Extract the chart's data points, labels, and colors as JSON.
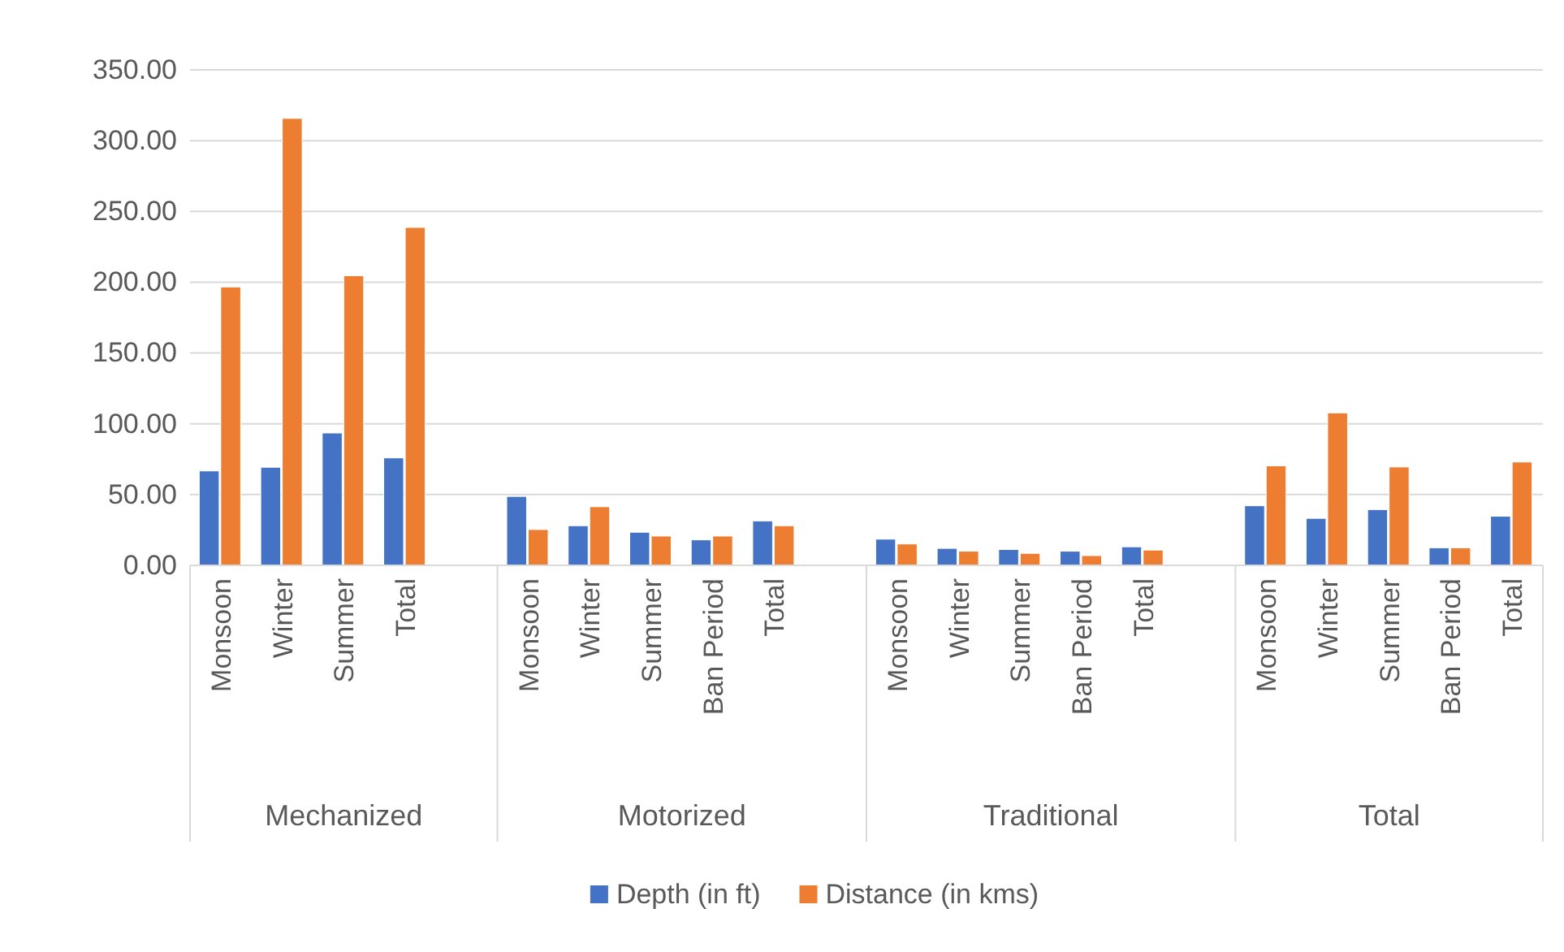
{
  "chart_data": {
    "type": "bar",
    "categories": [
      "Monsoon",
      "Winter",
      "Summer",
      "Total",
      null,
      "Monsoon",
      "Winter",
      "Summer",
      "Ban Period",
      "Total",
      null,
      "Monsoon",
      "Winter",
      "Summer",
      "Ban Period",
      "Total",
      null,
      "Monsoon",
      "Winter",
      "Summer",
      "Ban Period",
      "Total"
    ],
    "series": [
      {
        "name": "Depth (in ft)",
        "color": "#4472c4",
        "values": [
          66.7,
          69.3,
          93.5,
          75.9,
          null,
          48.7,
          28.0,
          23.4,
          18.0,
          31.4,
          null,
          18.5,
          12.0,
          11.2,
          10.0,
          13.1,
          null,
          42.1,
          33.2,
          39.4,
          12.4,
          34.7
        ]
      },
      {
        "name": "Distance (in kms)",
        "color": "#ed7d31",
        "values": [
          196.6,
          315.7,
          204.6,
          238.7,
          null,
          25.3,
          41.4,
          20.7,
          20.7,
          28.0,
          null,
          15.1,
          10.0,
          8.5,
          6.9,
          10.8,
          null,
          70.3,
          107.7,
          69.5,
          12.4,
          73.0
        ]
      }
    ],
    "annotations": [
      "Mechanized",
      "Motorized",
      "Traditional",
      "Total"
    ],
    "ylim": [
      0,
      350
    ],
    "yticks": [
      {
        "value": 0,
        "label": "0.00"
      },
      {
        "value": 50,
        "label": "50.00"
      },
      {
        "value": 100,
        "label": "100.00"
      },
      {
        "value": 150,
        "label": "150.00"
      },
      {
        "value": 200,
        "label": "200.00"
      },
      {
        "value": 250,
        "label": "250.00"
      },
      {
        "value": 300,
        "label": "300.00"
      },
      {
        "value": 350,
        "label": "350.00"
      }
    ],
    "grid": "y",
    "legend": "bottom"
  }
}
